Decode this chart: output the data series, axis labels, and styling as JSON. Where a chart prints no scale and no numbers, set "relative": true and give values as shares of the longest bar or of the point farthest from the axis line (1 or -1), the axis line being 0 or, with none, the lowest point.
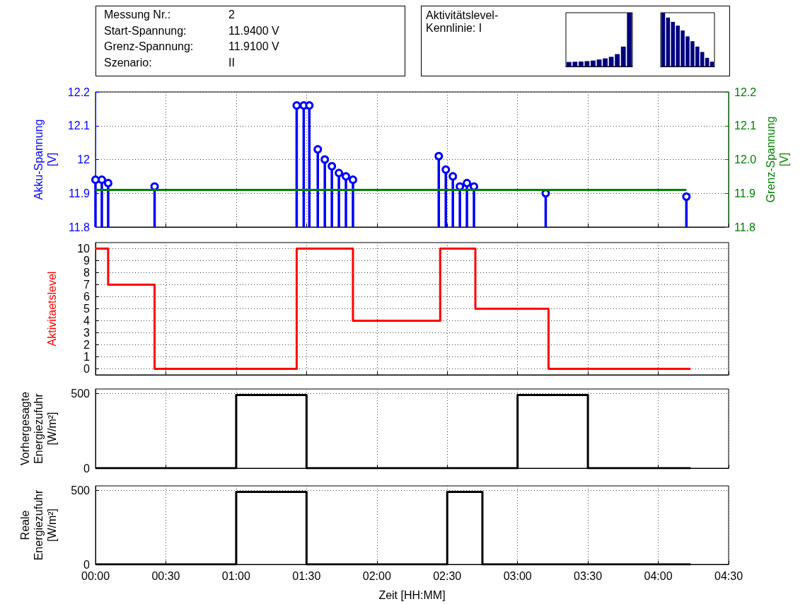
{
  "chart_data": [
    {
      "type": "other",
      "annotations": [
        "Messung Nr.:",
        "2",
        "Start-Spannung:",
        "11.9400 V",
        "Grenz-Spannung:",
        "11.9100 V",
        "Szenario:",
        "II"
      ]
    },
    {
      "type": "other",
      "title": "Aktivitätslevel-Kennlinie: I"
    },
    {
      "type": "bar",
      "relative": true,
      "categories": [
        null,
        null,
        null,
        null,
        null,
        null,
        null,
        null,
        null,
        null,
        null
      ],
      "color": "#00007f",
      "values": [
        0.084,
        0.088,
        0.092,
        0.1,
        0.11,
        0.13,
        0.15,
        0.18,
        0.23,
        0.37,
        1
      ]
    },
    {
      "type": "bar",
      "relative": true,
      "categories": [
        null,
        null,
        null,
        null,
        null,
        null,
        null,
        null,
        null,
        null,
        null
      ],
      "color": "#00007f",
      "values": [
        1,
        0.91,
        0.83,
        0.76,
        0.67,
        0.56,
        0.47,
        0.37,
        0.27,
        0.16,
        0.09
      ]
    },
    {
      "type": "lollipop",
      "ylabel": "Akku-Spannung [V]",
      "y2label": "Grenz-Spannung [V]",
      "x": [
        0,
        0.045,
        0.09,
        0.42,
        1.43,
        1.48,
        1.52,
        1.58,
        1.63,
        1.68,
        1.73,
        1.78,
        1.83,
        2.44,
        2.49,
        2.54,
        2.59,
        2.64,
        2.69,
        3.2,
        4.2
      ],
      "series": [
        {
          "color": "#0000ff",
          "marker": "circle",
          "values": [
            11.94,
            11.94,
            11.93,
            11.92,
            12.16,
            12.16,
            12.16,
            12.03,
            12,
            11.98,
            11.96,
            11.95,
            11.94,
            12.01,
            11.97,
            11.95,
            11.92,
            11.93,
            11.92,
            11.9,
            11.89
          ]
        },
        {
          "type": "line",
          "axis": "y2",
          "x": [
            0,
            4.2
          ],
          "color": "#008000",
          "values": [
            11.91,
            11.91
          ]
        }
      ],
      "xlim": [
        0,
        4.5
      ],
      "xticks": [
        {
          "value": 0,
          "label": null
        },
        {
          "value": 0.5,
          "label": null
        },
        {
          "value": 1,
          "label": null
        },
        {
          "value": 1.5,
          "label": null
        },
        {
          "value": 2,
          "label": null
        },
        {
          "value": 2.5,
          "label": null
        },
        {
          "value": 3,
          "label": null
        },
        {
          "value": 3.5,
          "label": null
        },
        {
          "value": 4,
          "label": null
        },
        {
          "value": 4.5,
          "label": null
        }
      ],
      "ylim": [
        11.8,
        12.2
      ],
      "yticks": [
        11.8,
        11.9,
        12,
        12.1,
        12.2
      ],
      "y2lim": [
        11.8,
        12.2
      ],
      "y2ticks": [
        11.8,
        11.9,
        {
          "value": 12,
          "label": "12.0"
        },
        12.1,
        12.2
      ],
      "grid": true,
      "tick_labels": "y"
    },
    {
      "type": "step",
      "ylabel": "Aktivitaetslevel",
      "x": [
        0,
        0.09,
        0.42,
        1.43,
        1.83,
        2.45,
        2.7,
        3.22,
        4.23
      ],
      "series": [
        {
          "color": "#ff0000",
          "values": [
            10,
            7,
            0,
            10,
            4,
            10,
            5,
            0,
            0
          ]
        }
      ],
      "xlim": [
        0,
        4.5
      ],
      "xticks": [
        {
          "value": 0,
          "label": null
        },
        {
          "value": 0.5,
          "label": null
        },
        {
          "value": 1,
          "label": null
        },
        {
          "value": 1.5,
          "label": null
        },
        {
          "value": 2,
          "label": null
        },
        {
          "value": 2.5,
          "label": null
        },
        {
          "value": 3,
          "label": null
        },
        {
          "value": 3.5,
          "label": null
        },
        {
          "value": 4,
          "label": null
        },
        {
          "value": 4.5,
          "label": null
        }
      ],
      "ylim": [
        -0.5,
        10.5
      ],
      "yticks": [
        0,
        1,
        2,
        3,
        4,
        5,
        6,
        7,
        8,
        9,
        10
      ],
      "grid": true,
      "tick_labels": "y"
    },
    {
      "type": "step",
      "ylabel": "Vorhergesagte Energiezufuhr [W/m²]",
      "x": [
        0,
        1,
        1.5,
        3,
        3.5,
        4.23
      ],
      "series": [
        {
          "color": "#000000",
          "values": [
            0,
            490,
            0,
            490,
            0,
            0
          ]
        }
      ],
      "xlim": [
        0,
        4.5
      ],
      "xticks": [
        {
          "value": 0,
          "label": null
        },
        {
          "value": 0.5,
          "label": null
        },
        {
          "value": 1,
          "label": null
        },
        {
          "value": 1.5,
          "label": null
        },
        {
          "value": 2,
          "label": null
        },
        {
          "value": 2.5,
          "label": null
        },
        {
          "value": 3,
          "label": null
        },
        {
          "value": 3.5,
          "label": null
        },
        {
          "value": 4,
          "label": null
        },
        {
          "value": 4.5,
          "label": null
        }
      ],
      "ylim": [
        0,
        530
      ],
      "yticks": [
        0,
        500
      ],
      "grid": true,
      "tick_labels": "y"
    },
    {
      "type": "step",
      "ylabel": "Reale Energiezufuhr [W/m²]",
      "xlabel": "Zeit [HH:MM]",
      "x": [
        0,
        1,
        1.5,
        2.5,
        2.75,
        4.23
      ],
      "series": [
        {
          "color": "#000000",
          "values": [
            0,
            490,
            0,
            490,
            0,
            0
          ]
        }
      ],
      "xlim": [
        0,
        4.5
      ],
      "xticks": [
        {
          "value": 0,
          "label": "00:00"
        },
        {
          "value": 0.5,
          "label": "00:30"
        },
        {
          "value": 1,
          "label": "01:00"
        },
        {
          "value": 1.5,
          "label": "01:30"
        },
        {
          "value": 2,
          "label": "02:00"
        },
        {
          "value": 2.5,
          "label": "02:30"
        },
        {
          "value": 3,
          "label": "03:00"
        },
        {
          "value": 3.5,
          "label": "03:30"
        },
        {
          "value": 4,
          "label": "04:00"
        },
        {
          "value": 4.5,
          "label": "04:30"
        }
      ],
      "ylim": [
        0,
        530
      ],
      "yticks": [
        0,
        500
      ],
      "grid": true
    }
  ]
}
